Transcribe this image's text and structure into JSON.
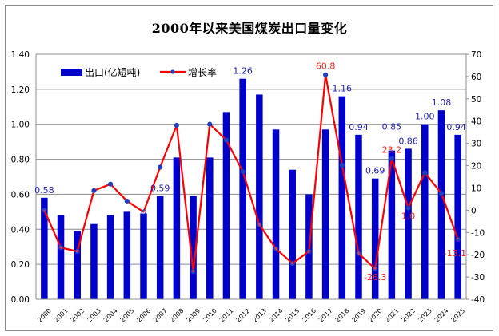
{
  "chart_data": {
    "type": "bar+line",
    "title": "2000年以来美国煤炭出口量变化",
    "categories": [
      "2000",
      "2001",
      "2002",
      "2003",
      "2004",
      "2005",
      "2006",
      "2007",
      "2008",
      "2009",
      "2010",
      "2011",
      "2012",
      "2013",
      "2014",
      "2015",
      "2016",
      "2017",
      "2018",
      "2019",
      "2020",
      "2021",
      "2022",
      "2023",
      "2024",
      "2025"
    ],
    "series": [
      {
        "name": "出口(亿短吨)",
        "type": "bar",
        "axis": "left",
        "color": "#0000cc",
        "values": [
          0.58,
          0.48,
          0.39,
          0.43,
          0.48,
          0.5,
          0.49,
          0.59,
          0.81,
          0.59,
          0.81,
          1.07,
          1.26,
          1.17,
          0.97,
          0.74,
          0.6,
          0.97,
          1.16,
          0.94,
          0.69,
          0.85,
          0.86,
          1.0,
          1.08,
          0.94
        ]
      },
      {
        "name": "增长率",
        "type": "line",
        "axis": "right",
        "color": "#ff0000",
        "marker_color": "#1f3fbf",
        "values": [
          0.0,
          -16.8,
          -18.5,
          8.8,
          11.7,
          4.1,
          -0.8,
          19.3,
          38.1,
          -27.5,
          38.6,
          31.5,
          17.3,
          -6.5,
          -17.3,
          -23.9,
          -18.5,
          60.8,
          20.2,
          -19.4,
          -26.3,
          23.2,
          1.0,
          16.8,
          7.6,
          -13.1
        ]
      }
    ],
    "bar_data_labels": [
      {
        "category": "2000",
        "text": "0.58"
      },
      {
        "category": "2007",
        "text": "0.59"
      },
      {
        "category": "2012",
        "text": "1.26"
      },
      {
        "category": "2018",
        "text": "1.16"
      },
      {
        "category": "2019",
        "text": "0.94"
      },
      {
        "category": "2020",
        "text": "0.69"
      },
      {
        "category": "2021",
        "text": "0.85"
      },
      {
        "category": "2022",
        "text": "0.86"
      },
      {
        "category": "2023",
        "text": "1.00"
      },
      {
        "category": "2024",
        "text": "1.08"
      },
      {
        "category": "2025",
        "text": "0.94"
      }
    ],
    "rate_data_labels": [
      {
        "category": "2017",
        "text": "60.8",
        "position": "above"
      },
      {
        "category": "2020",
        "text": "-26.3",
        "position": "below"
      },
      {
        "category": "2021",
        "text": "23.2",
        "position": "above"
      },
      {
        "category": "2022",
        "text": "1.0",
        "position": "below"
      },
      {
        "category": "2025",
        "text": "-13.1",
        "position": "right"
      }
    ],
    "left_axis": {
      "min": 0,
      "max": 1.4,
      "step": 0.2,
      "ticks": [
        "0.00",
        "0.20",
        "0.40",
        "0.60",
        "0.80",
        "1.00",
        "1.20",
        "1.40"
      ]
    },
    "right_axis": {
      "min": -40,
      "max": 70,
      "step": 10,
      "ticks": [
        "-40",
        "-30",
        "-20",
        "-10",
        "0",
        "10",
        "20",
        "30",
        "40",
        "50",
        "60",
        "70"
      ]
    },
    "grid": true,
    "legend": {
      "placement": "top-left",
      "entries": [
        "出口(亿短吨)",
        "增长率"
      ]
    },
    "xlabel": "",
    "ylabel": ""
  }
}
